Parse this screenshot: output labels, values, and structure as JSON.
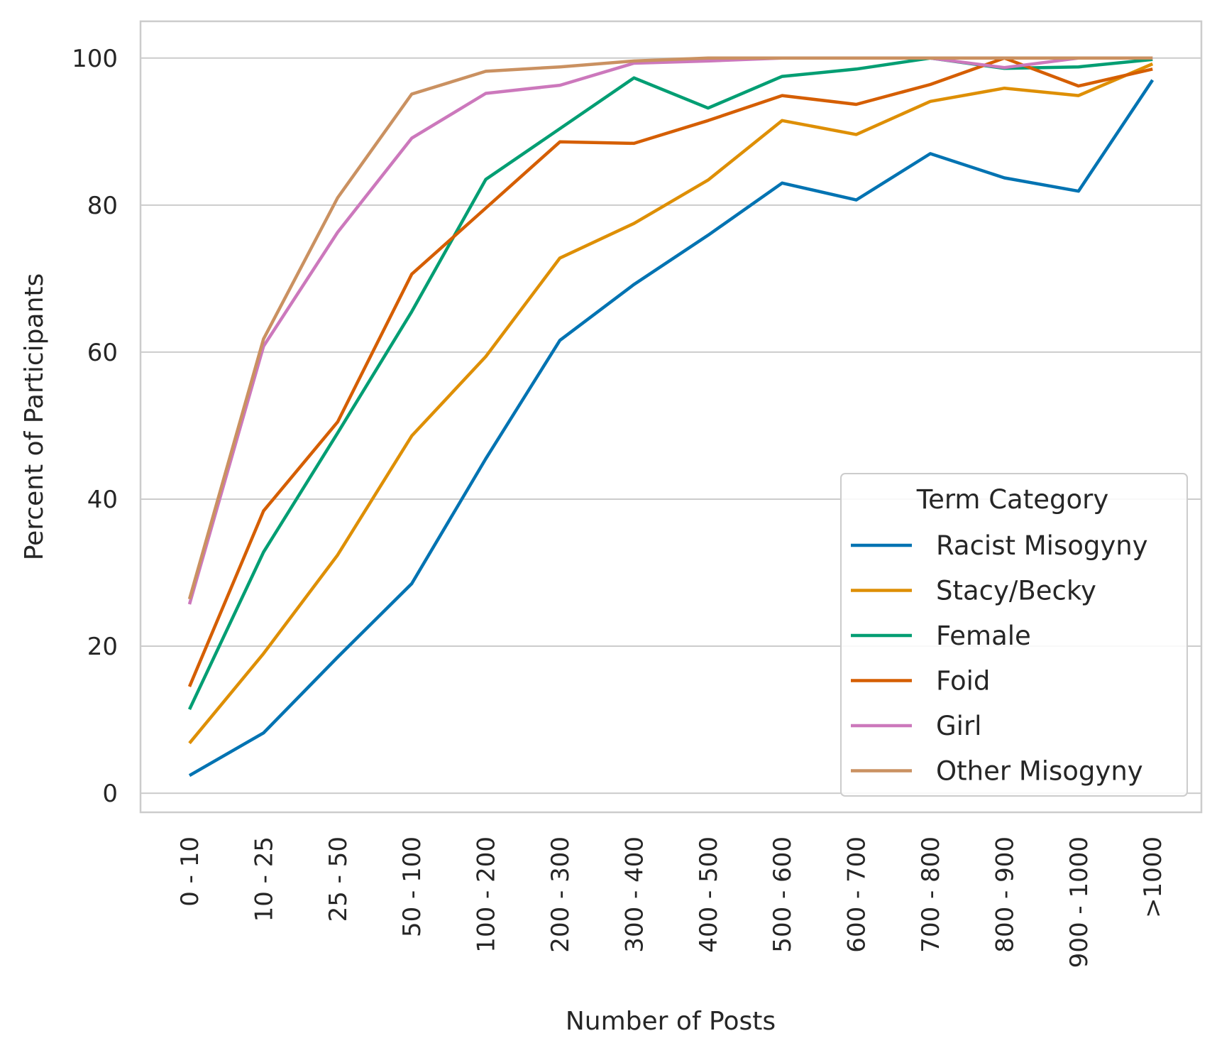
{
  "chart_data": {
    "type": "line",
    "xlabel": "Number of Posts",
    "ylabel": "Percent of Participants",
    "categories": [
      "0 - 10",
      "10 - 25",
      "25 - 50",
      "50 - 100",
      "100 - 200",
      "200 - 300",
      "300 - 400",
      "400 - 500",
      "500 - 600",
      "600 - 700",
      "700 - 800",
      "800 - 900",
      "900 - 1000",
      ">1000"
    ],
    "ylim": [
      -2.6,
      105
    ],
    "yticks": [
      0,
      20,
      40,
      60,
      80,
      100
    ],
    "grid": "horizontal",
    "legend": {
      "title": "Term Category",
      "placement": "lower right"
    },
    "series": [
      {
        "name": "Racist Misogyny",
        "color": "#0173b2",
        "values": [
          2.4,
          8.2,
          18.5,
          28.5,
          45.5,
          61.6,
          69.2,
          75.9,
          83.0,
          80.7,
          87.0,
          83.7,
          81.9,
          97.0
        ]
      },
      {
        "name": "Stacy/Becky",
        "color": "#de8f05",
        "values": [
          6.8,
          19.0,
          32.4,
          48.6,
          59.4,
          72.8,
          77.5,
          83.4,
          91.5,
          89.6,
          94.1,
          95.9,
          94.9,
          99.2
        ]
      },
      {
        "name": "Female",
        "color": "#029e73",
        "values": [
          11.4,
          32.8,
          49.0,
          65.5,
          83.5,
          90.4,
          97.3,
          93.2,
          97.5,
          98.5,
          100.0,
          98.6,
          98.8,
          99.8
        ]
      },
      {
        "name": "Foid",
        "color": "#d55e00",
        "values": [
          14.5,
          38.4,
          50.5,
          70.6,
          79.6,
          88.6,
          88.4,
          91.5,
          94.9,
          93.7,
          96.4,
          100.0,
          96.2,
          98.5
        ]
      },
      {
        "name": "Girl",
        "color": "#cc78bc",
        "values": [
          25.7,
          60.8,
          76.3,
          89.1,
          95.2,
          96.3,
          99.3,
          99.6,
          100.0,
          100.0,
          100.0,
          98.7,
          100.0,
          100.0
        ]
      },
      {
        "name": "Other Misogyny",
        "color": "#ca9161",
        "values": [
          26.4,
          61.8,
          81.0,
          95.1,
          98.2,
          98.8,
          99.6,
          100.0,
          100.0,
          100.0,
          100.0,
          100.0,
          100.0,
          100.0
        ]
      }
    ]
  }
}
